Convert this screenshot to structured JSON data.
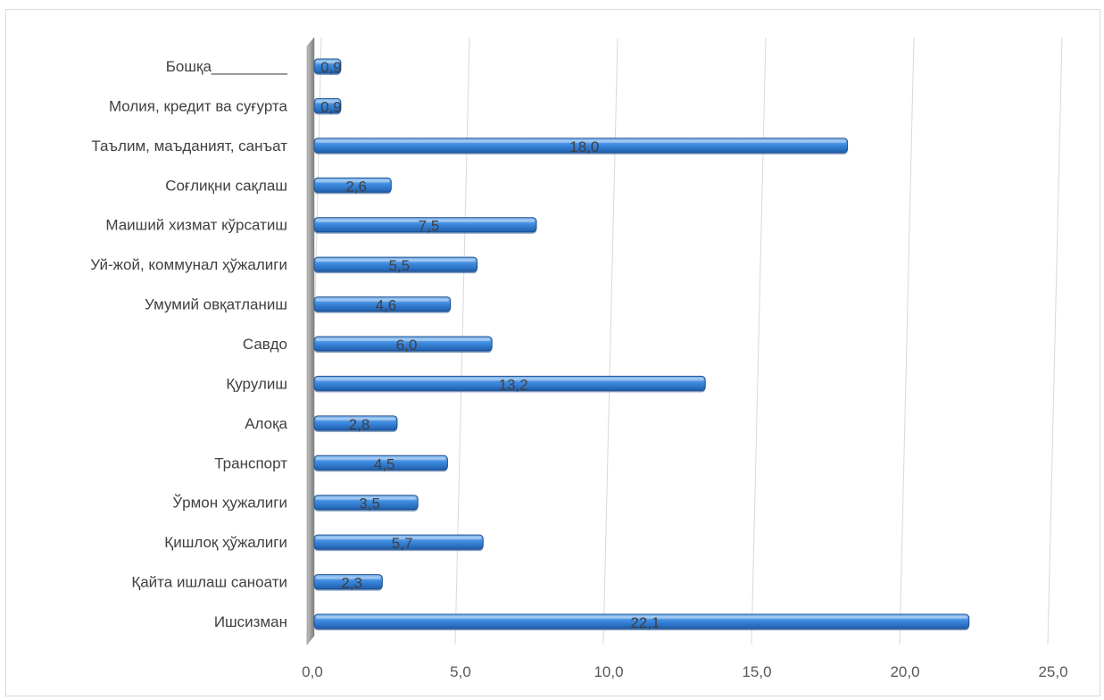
{
  "chart_data": {
    "type": "bar",
    "orientation": "horizontal",
    "title": "",
    "xlabel": "",
    "ylabel": "",
    "xlim": [
      0,
      25
    ],
    "x_ticks": [
      0,
      5,
      10,
      15,
      20,
      25
    ],
    "x_tick_labels": [
      "0,0",
      "5,0",
      "10,0",
      "15,0",
      "20,0",
      "25,0"
    ],
    "grid": "vertical",
    "legend": "none",
    "bar_color": "#2f7ed8",
    "categories": [
      "Ишсизман",
      "Қайта ишлаш саноати",
      "Қишлоқ ҳўжалиги",
      "Ўрмон ҳужалиги",
      "Транспорт",
      "Алоқа",
      "Қурулиш",
      "Савдо",
      "Умумий овқатланиш",
      "Уй-жой, коммунал ҳўжалиги",
      "Маиший хизмат кўрсатиш",
      "Соғлиқни сақлаш",
      "Таълим, маъданият, санъат",
      "Молия, кредит ва суғурта",
      "Бошқа_________"
    ],
    "values": [
      22.1,
      2.3,
      5.7,
      3.5,
      4.5,
      2.8,
      13.2,
      6.0,
      4.6,
      5.5,
      7.5,
      2.6,
      18.0,
      0.9,
      0.9
    ],
    "value_labels": [
      "22,1",
      "2,3",
      "5,7",
      "3,5",
      "4,5",
      "2,8",
      "13,2",
      "6,0",
      "4,6",
      "5,5",
      "7,5",
      "2,6",
      "18,0",
      "0,9",
      "0,9"
    ]
  }
}
